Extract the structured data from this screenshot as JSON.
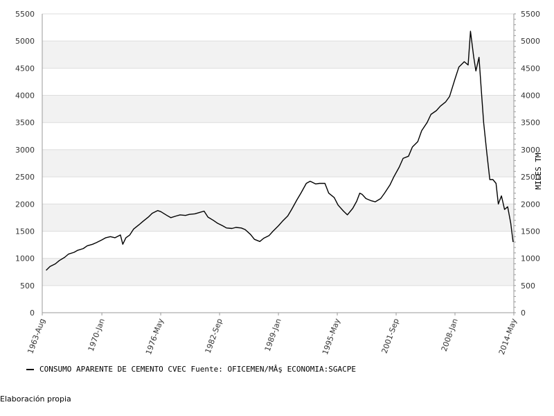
{
  "chart_data": {
    "type": "line",
    "title": "",
    "xlabel": "",
    "ylabel": "MILES TM",
    "ylim": [
      0,
      5500
    ],
    "yticks": [
      0,
      500,
      1000,
      1500,
      2000,
      2500,
      3000,
      3500,
      4000,
      4500,
      5000,
      5500
    ],
    "x_tick_labels": [
      "1963-Aug",
      "1970-Jan",
      "1976-May",
      "1982-Sep",
      "1989-Jan",
      "1995-May",
      "2001-Sep",
      "2008-Jan",
      "2014-May"
    ],
    "xlim": [
      "1963-08",
      "2014-05"
    ],
    "grid": true,
    "legend_position": "bottom-left",
    "colors": {
      "line": "#000000",
      "band": "#f2f2f2",
      "grid": "#dddddd",
      "axis": "#999999"
    },
    "series": [
      {
        "name": "CONSUMO APARENTE DE CEMENTO CVEC  Fuente: OFICEMEN/MÂş ECONOMIA:SGACPE",
        "points": [
          [
            "1964-01",
            780
          ],
          [
            "1964-06",
            850
          ],
          [
            "1965-01",
            900
          ],
          [
            "1965-06",
            960
          ],
          [
            "1966-01",
            1020
          ],
          [
            "1966-06",
            1080
          ],
          [
            "1967-01",
            1110
          ],
          [
            "1967-06",
            1150
          ],
          [
            "1968-01",
            1180
          ],
          [
            "1968-06",
            1230
          ],
          [
            "1969-01",
            1260
          ],
          [
            "1969-06",
            1290
          ],
          [
            "1970-01",
            1340
          ],
          [
            "1970-06",
            1380
          ],
          [
            "1970-12",
            1400
          ],
          [
            "1971-06",
            1380
          ],
          [
            "1972-01",
            1430
          ],
          [
            "1972-04",
            1260
          ],
          [
            "1972-08",
            1380
          ],
          [
            "1973-01",
            1430
          ],
          [
            "1973-06",
            1540
          ],
          [
            "1974-01",
            1620
          ],
          [
            "1974-06",
            1680
          ],
          [
            "1975-01",
            1760
          ],
          [
            "1975-06",
            1830
          ],
          [
            "1976-01",
            1880
          ],
          [
            "1976-05",
            1860
          ],
          [
            "1977-01",
            1790
          ],
          [
            "1977-06",
            1750
          ],
          [
            "1978-01",
            1780
          ],
          [
            "1978-06",
            1800
          ],
          [
            "1979-01",
            1790
          ],
          [
            "1979-06",
            1810
          ],
          [
            "1980-01",
            1820
          ],
          [
            "1980-06",
            1840
          ],
          [
            "1981-01",
            1870
          ],
          [
            "1981-06",
            1760
          ],
          [
            "1982-01",
            1700
          ],
          [
            "1982-06",
            1650
          ],
          [
            "1983-01",
            1600
          ],
          [
            "1983-06",
            1560
          ],
          [
            "1984-01",
            1550
          ],
          [
            "1984-06",
            1570
          ],
          [
            "1985-01",
            1560
          ],
          [
            "1985-06",
            1530
          ],
          [
            "1986-01",
            1440
          ],
          [
            "1986-06",
            1350
          ],
          [
            "1987-01",
            1310
          ],
          [
            "1987-06",
            1370
          ],
          [
            "1988-01",
            1420
          ],
          [
            "1988-06",
            1500
          ],
          [
            "1989-01",
            1600
          ],
          [
            "1989-06",
            1680
          ],
          [
            "1990-01",
            1780
          ],
          [
            "1990-06",
            1900
          ],
          [
            "1991-01",
            2080
          ],
          [
            "1991-06",
            2200
          ],
          [
            "1992-01",
            2380
          ],
          [
            "1992-06",
            2420
          ],
          [
            "1993-01",
            2370
          ],
          [
            "1993-06",
            2380
          ],
          [
            "1994-01",
            2380
          ],
          [
            "1994-06",
            2200
          ],
          [
            "1995-01",
            2120
          ],
          [
            "1995-06",
            1980
          ],
          [
            "1996-01",
            1870
          ],
          [
            "1996-06",
            1800
          ],
          [
            "1997-01",
            1920
          ],
          [
            "1997-06",
            2050
          ],
          [
            "1997-10",
            2200
          ],
          [
            "1998-01",
            2180
          ],
          [
            "1998-06",
            2100
          ],
          [
            "1999-01",
            2060
          ],
          [
            "1999-06",
            2040
          ],
          [
            "2000-01",
            2100
          ],
          [
            "2000-06",
            2200
          ],
          [
            "2001-01",
            2350
          ],
          [
            "2001-06",
            2500
          ],
          [
            "2002-01",
            2680
          ],
          [
            "2002-06",
            2840
          ],
          [
            "2003-01",
            2880
          ],
          [
            "2003-06",
            3050
          ],
          [
            "2004-01",
            3150
          ],
          [
            "2004-06",
            3350
          ],
          [
            "2005-01",
            3500
          ],
          [
            "2005-06",
            3650
          ],
          [
            "2006-01",
            3720
          ],
          [
            "2006-06",
            3800
          ],
          [
            "2007-01",
            3880
          ],
          [
            "2007-06",
            3980
          ],
          [
            "2008-01",
            4300
          ],
          [
            "2008-06",
            4520
          ],
          [
            "2009-01",
            4620
          ],
          [
            "2009-06",
            4560
          ],
          [
            "2009-09",
            5180
          ],
          [
            "2010-01",
            4720
          ],
          [
            "2010-04",
            4450
          ],
          [
            "2010-08",
            4700
          ],
          [
            "2010-11",
            4100
          ],
          [
            "2011-02",
            3500
          ],
          [
            "2011-06",
            2950
          ],
          [
            "2011-10",
            2450
          ],
          [
            "2012-02",
            2450
          ],
          [
            "2012-06",
            2380
          ],
          [
            "2012-09",
            2000
          ],
          [
            "2013-01",
            2150
          ],
          [
            "2013-05",
            1900
          ],
          [
            "2013-09",
            1950
          ],
          [
            "2014-01",
            1650
          ],
          [
            "2014-04",
            1300
          ]
        ]
      }
    ]
  },
  "legend": {
    "label": "CONSUMO APARENTE DE CEMENTO CVEC  Fuente: OFICEMEN/MÂş ECONOMIA:SGACPE"
  },
  "credit": "Elaboración propia"
}
